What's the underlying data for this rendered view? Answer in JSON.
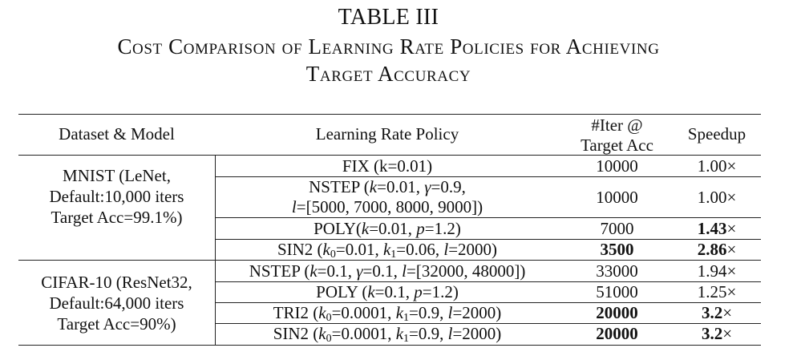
{
  "table_number": "TABLE III",
  "caption_line1": "Cost Comparison of Learning Rate Policies for Achieving",
  "caption_line2": "Target Accuracy",
  "headers": {
    "dataset_model": "Dataset & Model",
    "policy": "Learning Rate Policy",
    "iter_line1": "#Iter @",
    "iter_line2": "Target Acc",
    "speedup": "Speedup"
  },
  "groups": [
    {
      "dataset_lines": [
        "MNIST (LeNet,",
        "Default:10,000 iters",
        "Target Acc=99.1%)"
      ],
      "rows": [
        {
          "policy": "FIX (k=0.01)",
          "iters": "10000",
          "speedup": "1.00×"
        },
        {
          "policy": "NSTEP (k=0.01, γ=0.9, l=[5000, 7000, 8000, 9000])",
          "iters": "10000",
          "speedup": "1.00×"
        },
        {
          "policy": "POLY(k=0.01, p=1.2)",
          "iters": "7000",
          "speedup": "1.43×"
        },
        {
          "policy": "SIN2 (k0=0.01, k1=0.06, l=2000)",
          "iters": "3500",
          "speedup": "2.86×"
        }
      ]
    },
    {
      "dataset_lines": [
        "CIFAR-10 (ResNet32,",
        "Default:64,000 iters",
        "Target Acc=90%)"
      ],
      "rows": [
        {
          "policy": "NSTEP (k=0.1, γ=0.1, l=[32000, 48000])",
          "iters": "33000",
          "speedup": "1.94×"
        },
        {
          "policy": "POLY (k=0.1, p=1.2)",
          "iters": "51000",
          "speedup": "1.25×"
        },
        {
          "policy": "TRI2 (k0=0.0001, k1=0.9, l=2000)",
          "iters": "20000",
          "speedup": "3.2×"
        },
        {
          "policy": "SIN2 (k0=0.0001, k1=0.9, l=2000)",
          "iters": "20000",
          "speedup": "3.2×"
        }
      ]
    }
  ]
}
